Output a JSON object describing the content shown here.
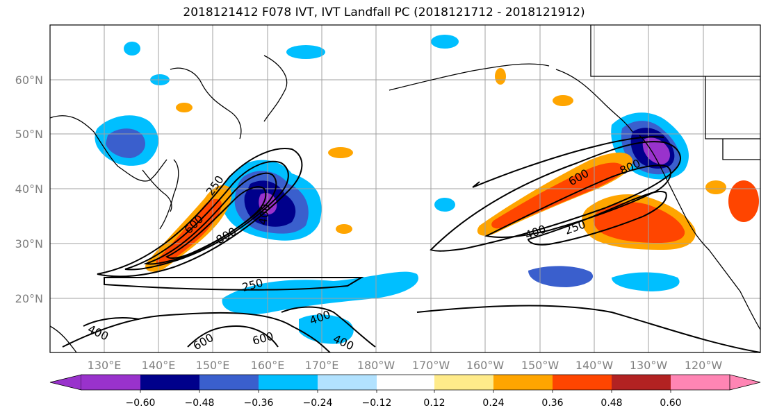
{
  "title": "2018121412 F078 IVT, IVT Landfall PC (2018121712 - 2018121912)",
  "lat_labels": [
    "60°N",
    "50°N",
    "40°N",
    "30°N",
    "20°N"
  ],
  "lon_labels": [
    "130°E",
    "140°E",
    "150°E",
    "160°E",
    "170°E",
    "180°W",
    "170°W",
    "160°W",
    "150°W",
    "140°W",
    "130°W",
    "120°W"
  ],
  "contour_labels": [
    "250",
    "600",
    "800",
    "400",
    "600",
    "800",
    "400",
    "250",
    "250",
    "400",
    "600",
    "600",
    "400",
    "400"
  ],
  "colorbar": {
    "ticks": [
      "−0.60",
      "−0.48",
      "−0.36",
      "−0.24",
      "−0.12",
      "0.12",
      "0.24",
      "0.36",
      "0.48",
      "0.60"
    ],
    "colors": [
      "#9932cc",
      "#00008b",
      "#3a5fcd",
      "#00bfff",
      "#b2e2ff",
      "#ffffff",
      "#ffeb8a",
      "#ffa500",
      "#ff4500",
      "#b22222",
      "#ff85b4"
    ]
  },
  "colors": {
    "frame": "#000000",
    "grid": "#a0a0a0",
    "label_gray": "#808080"
  }
}
